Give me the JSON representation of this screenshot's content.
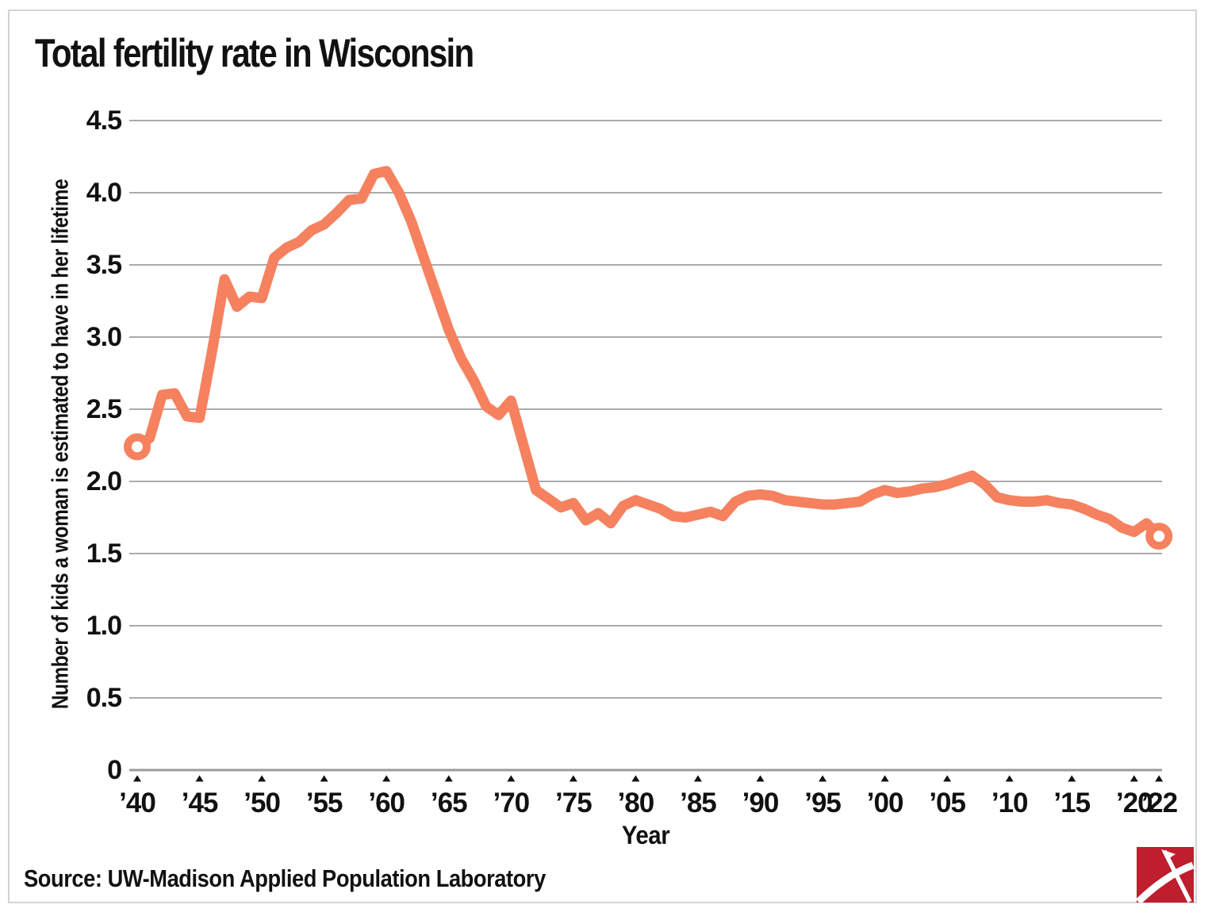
{
  "title": "Total fertility rate in Wisconsin",
  "source": "Source: UW-Madison Applied Population Laboratory",
  "colors": {
    "line": "#F5815F",
    "grid": "#ABABAD",
    "axis_baseline": "#9B9B9B",
    "text": "#111111",
    "tick_marker": "#111111",
    "frame_border": "#D3D3D3",
    "logo_red": "#BE1E2E",
    "logo_mark": "#FFFFFF",
    "background": "#FFFFFF"
  },
  "chart_data": {
    "type": "line",
    "title": "Total fertility rate in Wisconsin",
    "xlabel": "Year",
    "ylabel": "Number of kids a woman is estimated to have in her lifetime",
    "series_name": "Total fertility rate",
    "x_start_year": 1940,
    "x_end_year": 2022,
    "values": [
      2.24,
      2.3,
      2.6,
      2.61,
      2.45,
      2.44,
      2.9,
      3.4,
      3.21,
      3.28,
      3.27,
      3.55,
      3.62,
      3.66,
      3.74,
      3.78,
      3.86,
      3.95,
      3.96,
      4.13,
      4.15,
      4.0,
      3.8,
      3.55,
      3.3,
      3.05,
      2.85,
      2.7,
      2.52,
      2.46,
      2.56,
      2.25,
      1.94,
      1.88,
      1.82,
      1.85,
      1.73,
      1.78,
      1.71,
      1.83,
      1.87,
      1.84,
      1.81,
      1.76,
      1.75,
      1.77,
      1.79,
      1.76,
      1.86,
      1.9,
      1.91,
      1.9,
      1.87,
      1.86,
      1.85,
      1.84,
      1.84,
      1.85,
      1.86,
      1.91,
      1.94,
      1.92,
      1.93,
      1.95,
      1.96,
      1.98,
      2.01,
      2.04,
      1.98,
      1.89,
      1.87,
      1.86,
      1.86,
      1.87,
      1.85,
      1.84,
      1.81,
      1.77,
      1.74,
      1.68,
      1.65,
      1.71,
      1.62
    ],
    "first_point": {
      "year": 1940,
      "value": 2.24,
      "marker": "open-circle"
    },
    "last_point": {
      "year": 2022,
      "value": 1.62,
      "marker": "open-circle"
    },
    "ylim": [
      0,
      4.5
    ],
    "grid": "horizontal",
    "legend": "none",
    "y_ticks": [
      {
        "value": 4.5,
        "label": "4.5"
      },
      {
        "value": 4.0,
        "label": "4.0"
      },
      {
        "value": 3.5,
        "label": "3.5"
      },
      {
        "value": 3.0,
        "label": "3.0"
      },
      {
        "value": 2.5,
        "label": "2.5"
      },
      {
        "value": 2.0,
        "label": "2.0"
      },
      {
        "value": 1.5,
        "label": "1.5"
      },
      {
        "value": 1.0,
        "label": "1.0"
      },
      {
        "value": 0.5,
        "label": "0.5"
      },
      {
        "value": 0,
        "label": "0"
      }
    ],
    "x_ticks": [
      {
        "year": 1940,
        "label": "’40"
      },
      {
        "year": 1945,
        "label": "’45"
      },
      {
        "year": 1950,
        "label": "’50"
      },
      {
        "year": 1955,
        "label": "’55"
      },
      {
        "year": 1960,
        "label": "’60"
      },
      {
        "year": 1965,
        "label": "’65"
      },
      {
        "year": 1970,
        "label": "’70"
      },
      {
        "year": 1975,
        "label": "’75"
      },
      {
        "year": 1980,
        "label": "’80"
      },
      {
        "year": 1985,
        "label": "’85"
      },
      {
        "year": 1990,
        "label": "’90"
      },
      {
        "year": 1995,
        "label": "’95"
      },
      {
        "year": 2000,
        "label": "’00"
      },
      {
        "year": 2005,
        "label": "’05"
      },
      {
        "year": 2010,
        "label": "’10"
      },
      {
        "year": 2015,
        "label": "’15"
      },
      {
        "year": 2020,
        "label": "’20"
      },
      {
        "year": 2022,
        "label": "’22"
      }
    ]
  },
  "logo": {
    "name": "publisher-logo",
    "shape": "red square with white crossed pickaxe mark"
  }
}
